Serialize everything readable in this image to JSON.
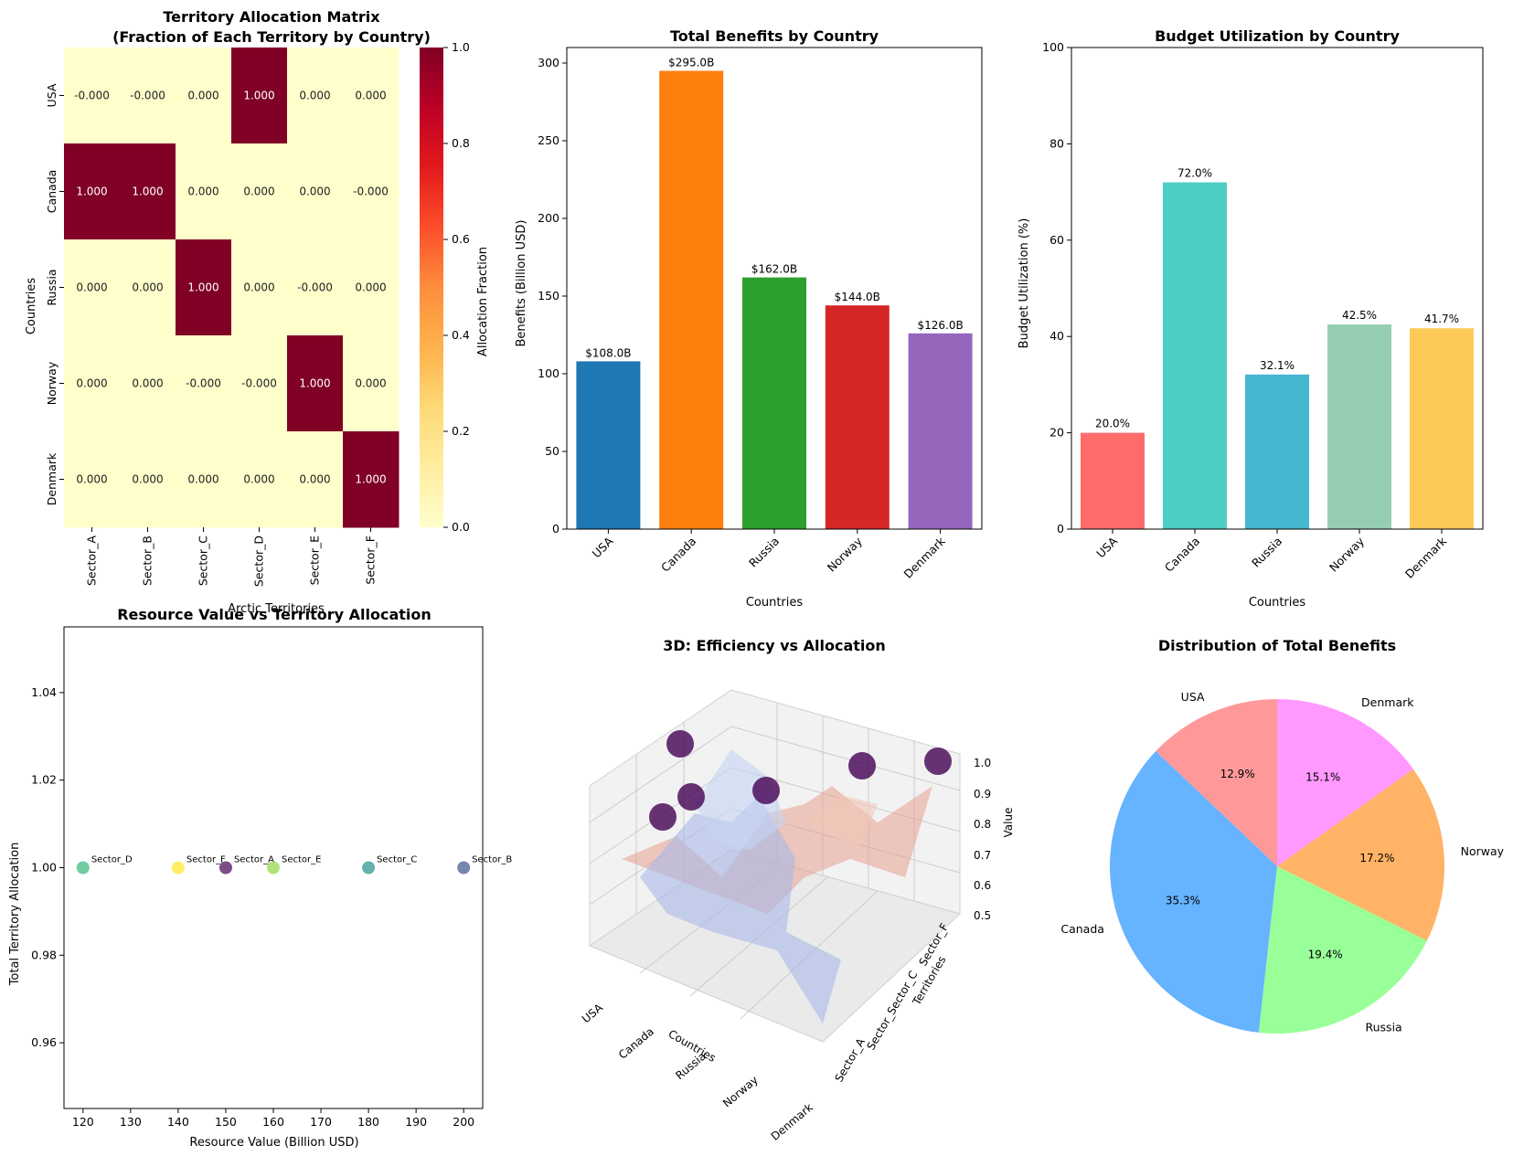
{
  "chart_data": [
    {
      "type": "heatmap",
      "title": "Territory Allocation Matrix\n(Fraction of Each Territory by Country)",
      "xlabel": "Arctic Territories",
      "ylabel": "Countries",
      "x_categories": [
        "Sector_A",
        "Sector_B",
        "Sector_C",
        "Sector_D",
        "Sector_E",
        "Sector_F"
      ],
      "y_categories": [
        "USA",
        "Canada",
        "Russia",
        "Norway",
        "Denmark"
      ],
      "cell_labels": [
        [
          "-0.000",
          "-0.000",
          "0.000",
          "1.000",
          "0.000",
          "0.000"
        ],
        [
          "1.000",
          "1.000",
          "0.000",
          "0.000",
          "0.000",
          "-0.000"
        ],
        [
          "0.000",
          "0.000",
          "1.000",
          "0.000",
          "-0.000",
          "0.000"
        ],
        [
          "0.000",
          "0.000",
          "-0.000",
          "-0.000",
          "1.000",
          "0.000"
        ],
        [
          "0.000",
          "0.000",
          "0.000",
          "0.000",
          "0.000",
          "1.000"
        ]
      ],
      "values": [
        [
          0,
          0,
          0,
          1,
          0,
          0
        ],
        [
          1,
          1,
          0,
          0,
          0,
          0
        ],
        [
          0,
          0,
          1,
          0,
          0,
          0
        ],
        [
          0,
          0,
          0,
          0,
          1,
          0
        ],
        [
          0,
          0,
          0,
          0,
          0,
          1
        ]
      ],
      "colorbar_label": "Allocation Fraction",
      "colorbar_ticks": [
        "0.0",
        "0.2",
        "0.4",
        "0.6",
        "0.8",
        "1.0"
      ],
      "color_low": "#ffffcc",
      "color_high": "#800026"
    },
    {
      "type": "bar",
      "title": "Total Benefits by Country",
      "xlabel": "Countries",
      "ylabel": "Benefits (Billion USD)",
      "categories": [
        "USA",
        "Canada",
        "Russia",
        "Norway",
        "Denmark"
      ],
      "values": [
        108,
        295,
        162,
        144,
        126
      ],
      "data_labels": [
        "$108.0B",
        "$295.0B",
        "$162.0B",
        "$144.0B",
        "$126.0B"
      ],
      "colors": [
        "#1f77b4",
        "#ff7f0e",
        "#2ca02c",
        "#d62728",
        "#9467bd"
      ],
      "ylim": [
        0,
        310
      ],
      "yticks": [
        0,
        50,
        100,
        150,
        200,
        250,
        300
      ]
    },
    {
      "type": "bar",
      "title": "Budget Utilization by Country",
      "xlabel": "Countries",
      "ylabel": "Budget Utilization (%)",
      "categories": [
        "USA",
        "Canada",
        "Russia",
        "Norway",
        "Denmark"
      ],
      "values": [
        20.0,
        72.0,
        32.1,
        42.5,
        41.7
      ],
      "data_labels": [
        "20.0%",
        "72.0%",
        "32.1%",
        "42.5%",
        "41.7%"
      ],
      "colors": [
        "#ff6b6b",
        "#4ecdc4",
        "#45b7d1",
        "#96ceb4",
        "#feca57"
      ],
      "ylim": [
        0,
        100
      ],
      "yticks": [
        0,
        20,
        40,
        60,
        80,
        100
      ]
    },
    {
      "type": "scatter",
      "title": "Resource Value vs Territory Allocation",
      "xlabel": "Resource Value (Billion USD)",
      "ylabel": "Total Territory Allocation",
      "points": [
        {
          "label": "Sector_D",
          "x": 120,
          "y": 1.0,
          "color": "#35b779"
        },
        {
          "label": "Sector_F",
          "x": 140,
          "y": 1.0,
          "color": "#fde725"
        },
        {
          "label": "Sector_A",
          "x": 150,
          "y": 1.0,
          "color": "#440154"
        },
        {
          "label": "Sector_E",
          "x": 160,
          "y": 1.0,
          "color": "#90d743"
        },
        {
          "label": "Sector_C",
          "x": 180,
          "y": 1.0,
          "color": "#21918c"
        },
        {
          "label": "Sector_B",
          "x": 200,
          "y": 1.0,
          "color": "#3b528b"
        }
      ],
      "xlim": [
        116,
        204
      ],
      "ylim": [
        0.945,
        1.055
      ],
      "xticks": [
        120,
        130,
        140,
        150,
        160,
        170,
        180,
        190,
        200
      ],
      "yticks": [
        0.96,
        0.98,
        1.0,
        1.02,
        1.04
      ],
      "ytick_labels": [
        "0.96",
        "0.98",
        "1.00",
        "1.02",
        "1.04"
      ]
    },
    {
      "type": "surface3d",
      "title": "3D: Efficiency vs Allocation",
      "xlabel": "Countries",
      "ylabel": "Territories",
      "zlabel": "Value",
      "x_categories": [
        "USA",
        "Canada",
        "Russia",
        "Norway",
        "Denmark"
      ],
      "z_ticks": [
        "0.5",
        "0.6",
        "0.7",
        "0.8",
        "0.9",
        "1.0"
      ],
      "y_tick_text": "Sector_A",
      "y_tick_overlap_text": "Sector_Sector_C",
      "y_tick_end": "Sector_F"
    },
    {
      "type": "pie",
      "title": "Distribution of Total Benefits",
      "labels": [
        "USA",
        "Canada",
        "Russia",
        "Norway",
        "Denmark"
      ],
      "values": [
        12.9,
        35.3,
        19.4,
        17.2,
        15.1
      ],
      "pct_labels": [
        "12.9%",
        "35.3%",
        "19.4%",
        "17.2%",
        "15.1%"
      ],
      "colors": [
        "#ff9999",
        "#66b3ff",
        "#99ff99",
        "#ffb366",
        "#ff99ff"
      ]
    }
  ]
}
